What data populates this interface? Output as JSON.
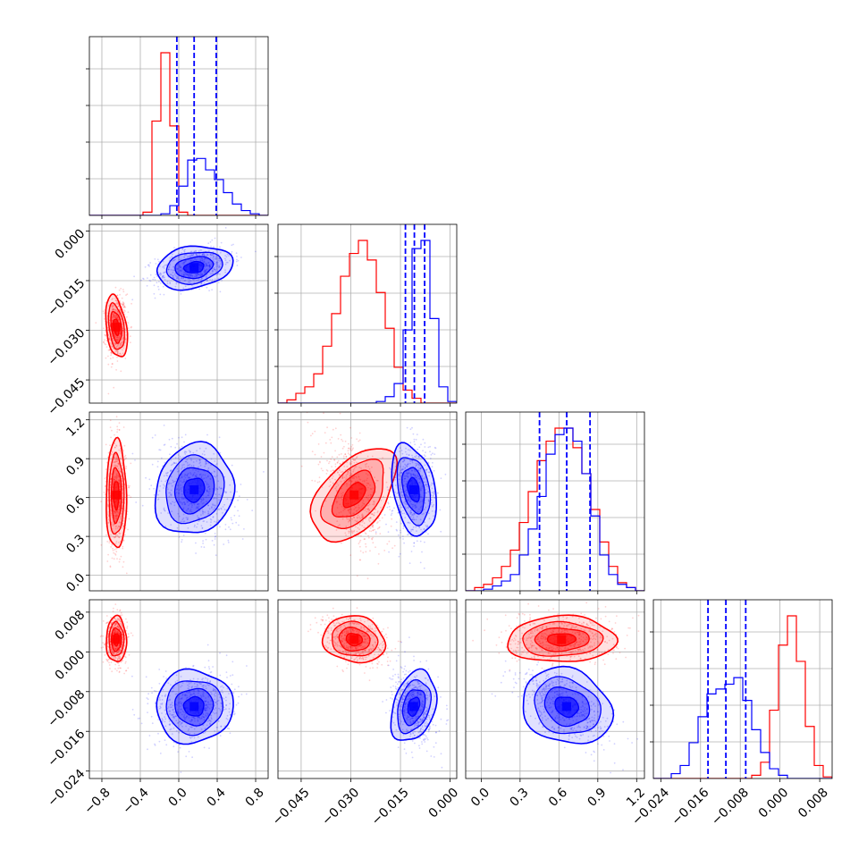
{
  "colors": {
    "red": "#ff0000",
    "blue": "#0000ff",
    "grid": "#b0b0b0",
    "axis": "#000000"
  },
  "chart_data": {
    "type": "corner",
    "parameters": [
      {
        "range": [
          -0.93,
          0.93
        ],
        "ticks": [
          -0.8,
          -0.4,
          0.0,
          0.4,
          0.8
        ],
        "tick_labels": [
          "−0.8",
          "−0.4",
          "0.0",
          "0.4",
          "0.8"
        ]
      },
      {
        "range": [
          -0.052,
          0.002
        ],
        "ticks": [
          -0.045,
          -0.03,
          -0.015,
          0.0
        ],
        "tick_labels": [
          "−0.045",
          "−0.030",
          "−0.015",
          "0.000"
        ]
      },
      {
        "range": [
          -0.12,
          1.26
        ],
        "ticks": [
          0.0,
          0.3,
          0.6,
          0.9,
          1.2
        ],
        "tick_labels": [
          "0.0",
          "0.3",
          "0.6",
          "0.9",
          "1.2"
        ]
      },
      {
        "range": [
          -0.0255,
          0.0105
        ],
        "ticks": [
          -0.024,
          -0.016,
          -0.008,
          0.0,
          0.008
        ],
        "tick_labels": [
          "−0.024",
          "−0.016",
          "−0.008",
          "0.000",
          "0.008"
        ]
      }
    ],
    "series": [
      {
        "color": "red",
        "mean": [
          -0.65,
          -0.029,
          0.62,
          0.0025
        ],
        "sd": [
          0.05,
          0.0045,
          0.2,
          0.0022
        ],
        "hist": [
          [
            0,
            0,
            0,
            0,
            0,
            0,
            0.02,
            0.58,
            1.0,
            0.55,
            0.02,
            0,
            0,
            0,
            0,
            0,
            0,
            0,
            0,
            0
          ],
          [
            0,
            0.02,
            0.06,
            0.1,
            0.18,
            0.35,
            0.55,
            0.78,
            0.92,
            1.0,
            0.88,
            0.68,
            0.46,
            0.22,
            0.08,
            0.03,
            0,
            0,
            0,
            0
          ],
          [
            0,
            0.02,
            0.04,
            0.08,
            0.15,
            0.25,
            0.42,
            0.61,
            0.8,
            0.92,
            1.0,
            1.0,
            0.88,
            0.72,
            0.5,
            0.3,
            0.15,
            0.05,
            0.02,
            0
          ],
          [
            0,
            0,
            0,
            0,
            0,
            0,
            0,
            0,
            0,
            0,
            0,
            0.02,
            0.1,
            0.42,
            0.82,
            1.0,
            0.72,
            0.32,
            0.08,
            0.01
          ]
        ]
      },
      {
        "color": "blue",
        "mean": [
          0.16,
          -0.011,
          0.66,
          -0.011
        ],
        "sd": [
          0.19,
          0.003,
          0.17,
          0.0035
        ],
        "hist": [
          [
            0,
            0,
            0,
            0,
            0,
            0,
            0,
            0,
            0.01,
            0.06,
            0.18,
            0.34,
            0.35,
            0.28,
            0.22,
            0.14,
            0.07,
            0.03,
            0.01,
            0
          ],
          [
            0,
            0,
            0,
            0,
            0,
            0,
            0,
            0,
            0,
            0,
            0,
            0.01,
            0.04,
            0.12,
            0.45,
            0.95,
            1.0,
            0.52,
            0.1,
            0.01
          ],
          [
            0,
            0,
            0.01,
            0.03,
            0.06,
            0.1,
            0.22,
            0.38,
            0.58,
            0.84,
            0.96,
            1.0,
            0.92,
            0.72,
            0.46,
            0.22,
            0.1,
            0.04,
            0.02,
            0
          ],
          [
            0,
            0,
            0.03,
            0.08,
            0.22,
            0.38,
            0.52,
            0.55,
            0.58,
            0.62,
            0.48,
            0.3,
            0.16,
            0.06,
            0.02,
            0,
            0,
            0,
            0,
            0
          ]
        ]
      }
    ],
    "quantile_lines": [
      [
        -0.02,
        0.16,
        0.39
      ],
      [
        -0.0135,
        -0.0108,
        -0.0077
      ],
      [
        0.45,
        0.66,
        0.84
      ],
      [
        -0.0145,
        -0.0109,
        -0.0069
      ]
    ],
    "quantile_series": "blue",
    "grid": true
  }
}
